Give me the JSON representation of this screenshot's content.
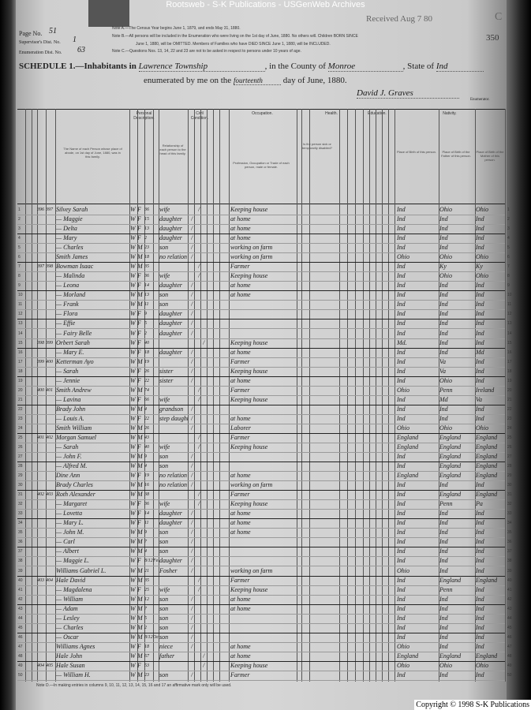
{
  "banner": "Rootsweb - S-K Publications - USGenWeb Archives",
  "header": {
    "page_no_label": "Page No.",
    "page_no": "51",
    "supervisor_label": "Supervisor's Dist. No.",
    "supervisor_no": "1",
    "enumeration_label": "Enumeration Dist. No.",
    "enumeration_no": "63",
    "note_a": "Note A.—The Census Year begins June 1, 1879, and ends May 31, 1880.",
    "note_b1": "Note B.—All persons will be included in the Enumeration who were living on the 1st day of June, 1880. No others will. Children BORN SINCE",
    "note_b2": "June 1, 1880, will be OMITTED. Members of Families who have DIED SINCE June 1, 1880, will be INCLUDED.",
    "note_c": "Note C.—Questions Nos. 13, 14, 22 and 23 are not to be asked in respect to persons under 10 years of age.",
    "received_stamp": "Received Aug 7 80",
    "corner_letter": "C",
    "sheet_number": "350",
    "schedule_label": "SCHEDULE 1.—Inhabitants in",
    "township": "Lawrence Township",
    "county_label": ", in the County of",
    "county": "Monroe",
    "state_label": ", State of",
    "state": "Ind",
    "enumerated_label": "enumerated by me on the",
    "enumerated_day": "fourteenth",
    "day_label": "day of June, 1880.",
    "enumerator_signature": "David J. Graves",
    "enumerator_label": "Enumerator."
  },
  "column_groups": {
    "personal": "Personal Description.",
    "civil": "Civil Condition.",
    "occupation": "Occupation.",
    "health": "Health.",
    "education": "Education.",
    "nativity": "Nativity."
  },
  "column_headers": {
    "name": "The Name of each Person whose place of abode, on 1st day of June, 1880, was in this family.",
    "relation": "Relationship of each person to the head of this family.",
    "occupation": "Profession, Occupation or Trade of each person, male or female.",
    "sickness": "Is the person sick or temporarily disabled?",
    "birthplace": "Place of Birth of this person.",
    "father": "Place of Birth of the Father of this person.",
    "mother": "Place of Birth of the Mother of this person."
  },
  "rows": [
    {
      "dwelling": "396",
      "family": "397",
      "name": "Silvey Sarah",
      "color": "W",
      "sex": "F",
      "age": "36",
      "relation": "wife",
      "civil": "married",
      "occupation": "Keeping house",
      "birthplace": "Ind",
      "father": "Ohio",
      "mother": "Ohio"
    },
    {
      "name": "— Maggie",
      "color": "W",
      "sex": "F",
      "age": "15",
      "relation": "daughter",
      "civil": "single",
      "occupation": "at home",
      "birthplace": "Ind",
      "father": "Ind",
      "mother": "Ind"
    },
    {
      "name": "— Delta",
      "color": "W",
      "sex": "F",
      "age": "13",
      "relation": "daughter",
      "civil": "single",
      "occupation": "at home",
      "birthplace": "Ind",
      "father": "Ind",
      "mother": "Ind",
      "end": true
    },
    {
      "name": "— Mary",
      "color": "W",
      "sex": "F",
      "age": "2",
      "relation": "daughter",
      "civil": "single",
      "occupation": "at home",
      "birthplace": "Ind",
      "father": "Ind",
      "mother": "Ind"
    },
    {
      "name": "— Charles",
      "color": "W",
      "sex": "M",
      "age": "23",
      "relation": "son",
      "civil": "single",
      "occupation": "working on farm",
      "birthplace": "Ind",
      "father": "Ind",
      "mother": "Ind"
    },
    {
      "name": "Smith James",
      "color": "W",
      "sex": "M",
      "age": "18",
      "relation": "no relation",
      "civil": "single",
      "occupation": "working on farm",
      "birthplace": "Ohio",
      "father": "Ohio",
      "mother": "Ohio",
      "end": true
    },
    {
      "dwelling": "397",
      "family": "398",
      "name": "Bowman Isaac",
      "color": "W",
      "sex": "M",
      "age": "35",
      "relation": "",
      "civil": "married",
      "occupation": "Farmer",
      "birthplace": "Ind",
      "father": "Ky",
      "mother": "Ky"
    },
    {
      "name": "— Malinda",
      "color": "W",
      "sex": "F",
      "age": "36",
      "relation": "wife",
      "civil": "married",
      "occupation": "Keeping house",
      "birthplace": "Ind",
      "father": "Ohio",
      "mother": "Ohio"
    },
    {
      "name": "— Leona",
      "color": "W",
      "sex": "F",
      "age": "14",
      "relation": "daughter",
      "civil": "single",
      "occupation": "at home",
      "birthplace": "Ind",
      "father": "Ind",
      "mother": "Ind",
      "end": true
    },
    {
      "name": "— Morland",
      "color": "W",
      "sex": "M",
      "age": "13",
      "relation": "son",
      "civil": "single",
      "occupation": "at home",
      "birthplace": "Ind",
      "father": "Ind",
      "mother": "Ind"
    },
    {
      "name": "— Frank",
      "color": "W",
      "sex": "M",
      "age": "11",
      "relation": "son",
      "civil": "single",
      "occupation": "",
      "birthplace": "Ind",
      "father": "Ind",
      "mother": "Ind"
    },
    {
      "name": "— Flora",
      "color": "W",
      "sex": "F",
      "age": "9",
      "relation": "daughter",
      "civil": "single",
      "occupation": "",
      "birthplace": "Ind",
      "father": "Ind",
      "mother": "Ind",
      "end": true
    },
    {
      "name": "— Effie",
      "color": "W",
      "sex": "F",
      "age": "5",
      "relation": "daughter",
      "civil": "single",
      "occupation": "",
      "birthplace": "Ind",
      "father": "Ind",
      "mother": "Ind"
    },
    {
      "name": "— Fairy Belle",
      "color": "W",
      "sex": "F",
      "age": "2",
      "relation": "daughter",
      "civil": "single",
      "occupation": "",
      "birthplace": "Ind",
      "father": "Ind",
      "mother": "Ind"
    },
    {
      "dwelling": "398",
      "family": "399",
      "name": "Orbert Sarah",
      "color": "W",
      "sex": "F",
      "age": "40",
      "relation": "",
      "civil": "widowed",
      "occupation": "Keeping house",
      "birthplace": "Md.",
      "father": "Ind",
      "mother": "Ind",
      "end": true
    },
    {
      "name": "— Mary E.",
      "color": "W",
      "sex": "F",
      "age": "18",
      "relation": "daughter",
      "civil": "single",
      "occupation": "at home",
      "birthplace": "Ind",
      "father": "Ind",
      "mother": "Md"
    },
    {
      "dwelling": "399",
      "family": "400",
      "name": "Ketterman Ayo",
      "color": "W",
      "sex": "M",
      "age": "19",
      "relation": "",
      "civil": "single",
      "occupation": "Farmer",
      "birthplace": "Ind",
      "father": "Va",
      "mother": "Ind"
    },
    {
      "name": "— Sarah",
      "color": "W",
      "sex": "F",
      "age": "26",
      "relation": "sister",
      "civil": "single",
      "occupation": "Keeping house",
      "birthplace": "Ind",
      "father": "Va",
      "mother": "Ind",
      "end": true
    },
    {
      "name": "— Jennie",
      "color": "W",
      "sex": "F",
      "age": "22",
      "relation": "sister",
      "civil": "single",
      "occupation": "at home",
      "birthplace": "Ind",
      "father": "Ohio",
      "mother": "Ind"
    },
    {
      "dwelling": "400",
      "family": "401",
      "name": "Smith Andrew",
      "color": "W",
      "sex": "M",
      "age": "74",
      "relation": "",
      "civil": "married",
      "occupation": "Farmer",
      "birthplace": "Ohio",
      "father": "Penn",
      "mother": "Ireland"
    },
    {
      "name": "— Lavina",
      "color": "W",
      "sex": "F",
      "age": "66",
      "relation": "wife",
      "civil": "married",
      "occupation": "Keeping house",
      "birthplace": "Ind",
      "father": "Md",
      "mother": "Va",
      "end": true
    },
    {
      "name": "Brady John",
      "color": "W",
      "sex": "M",
      "age": "4",
      "relation": "grandson",
      "civil": "single",
      "occupation": "",
      "birthplace": "Ind",
      "father": "Ind",
      "mother": "Ind"
    },
    {
      "name": "— Louis A.",
      "color": "W",
      "sex": "F",
      "age": "22",
      "relation": "step daughter",
      "civil": "single",
      "occupation": "at home",
      "birthplace": "Ind",
      "father": "Ind",
      "mother": "Ind"
    },
    {
      "name": "Smith William",
      "color": "W",
      "sex": "M",
      "age": "26",
      "relation": "",
      "civil": "single",
      "occupation": "Laborer",
      "birthplace": "Ohio",
      "father": "Ohio",
      "mother": "Ohio",
      "end": true
    },
    {
      "dwelling": "401",
      "family": "402",
      "name": "Morgan Samuel",
      "color": "W",
      "sex": "M",
      "age": "43",
      "relation": "",
      "civil": "married",
      "occupation": "Farmer",
      "birthplace": "England",
      "father": "England",
      "mother": "England"
    },
    {
      "name": "— Sarah",
      "color": "W",
      "sex": "F",
      "age": "40",
      "relation": "wife",
      "civil": "married",
      "occupation": "Keeping house",
      "birthplace": "England",
      "father": "England",
      "mother": "England"
    },
    {
      "name": "— John F.",
      "color": "W",
      "sex": "M",
      "age": "9",
      "relation": "son",
      "civil": "single",
      "occupation": "",
      "birthplace": "Ind",
      "father": "England",
      "mother": "England",
      "end": true
    },
    {
      "name": "— Alfred M.",
      "color": "W",
      "sex": "M",
      "age": "4",
      "relation": "son",
      "civil": "single",
      "occupation": "",
      "birthplace": "Ind",
      "father": "England",
      "mother": "England"
    },
    {
      "name": "Dine Ann",
      "color": "W",
      "sex": "F",
      "age": "19",
      "relation": "no relation",
      "civil": "single",
      "occupation": "at home",
      "birthplace": "England",
      "father": "England",
      "mother": "England"
    },
    {
      "name": "Brady Charles",
      "color": "W",
      "sex": "M",
      "age": "16",
      "relation": "no relation",
      "civil": "single",
      "occupation": "working on farm",
      "birthplace": "Ind",
      "father": "Ind",
      "mother": "Ind",
      "end": true
    },
    {
      "dwelling": "402",
      "family": "403",
      "name": "Roth Alexander",
      "color": "W",
      "sex": "M",
      "age": "38",
      "relation": "",
      "civil": "married",
      "occupation": "Farmer",
      "birthplace": "Ind",
      "father": "England",
      "mother": "England"
    },
    {
      "name": "— Margaret",
      "color": "W",
      "sex": "F",
      "age": "36",
      "relation": "wife",
      "civil": "married",
      "occupation": "Keeping house",
      "birthplace": "Ind",
      "father": "Penn",
      "mother": "Pa"
    },
    {
      "name": "— Lovetta",
      "color": "W",
      "sex": "F",
      "age": "14",
      "relation": "daughter",
      "civil": "single",
      "occupation": "at home",
      "birthplace": "Ind",
      "father": "Ind",
      "mother": "Ind",
      "end": true
    },
    {
      "name": "— Mary L.",
      "color": "W",
      "sex": "F",
      "age": "11",
      "relation": "daughter",
      "civil": "single",
      "occupation": "at home",
      "birthplace": "Ind",
      "father": "Ind",
      "mother": "Ind"
    },
    {
      "name": "— John M.",
      "color": "W",
      "sex": "M",
      "age": "9",
      "relation": "son",
      "civil": "single",
      "occupation": "at home",
      "birthplace": "Ind",
      "father": "Ind",
      "mother": "Ind"
    },
    {
      "name": "— Carl",
      "color": "W",
      "sex": "M",
      "age": "7",
      "relation": "son",
      "civil": "single",
      "occupation": "",
      "birthplace": "Ind",
      "father": "Ind",
      "mother": "Ind",
      "end": true
    },
    {
      "name": "— Albert",
      "color": "W",
      "sex": "M",
      "age": "4",
      "relation": "son",
      "civil": "single",
      "occupation": "",
      "birthplace": "Ind",
      "father": "Ind",
      "mother": "Ind"
    },
    {
      "name": "— Maggie L.",
      "color": "W",
      "sex": "F",
      "age": "8/12",
      "month": "Feb",
      "relation": "daughter",
      "civil": "single",
      "occupation": "",
      "birthplace": "Ind",
      "father": "Ind",
      "mother": "Ind"
    },
    {
      "name": "Williams Gabriel L.",
      "color": "W",
      "sex": "M",
      "age": "21",
      "relation": "Fosher",
      "civil": "single",
      "occupation": "working on farm",
      "birthplace": "Ohio",
      "father": "Ind",
      "mother": "Ind",
      "end": true
    },
    {
      "dwelling": "403",
      "family": "404",
      "name": "Hale David",
      "color": "W",
      "sex": "M",
      "age": "35",
      "relation": "",
      "civil": "married",
      "occupation": "Farmer",
      "birthplace": "Ind",
      "father": "England",
      "mother": "England"
    },
    {
      "name": "— Magdalena",
      "color": "W",
      "sex": "F",
      "age": "25",
      "relation": "wife",
      "civil": "married",
      "occupation": "Keeping house",
      "birthplace": "Ind",
      "father": "Penn",
      "mother": "Ind"
    },
    {
      "name": "— William",
      "color": "W",
      "sex": "M",
      "age": "12",
      "relation": "son",
      "civil": "single",
      "occupation": "at home",
      "birthplace": "Ind",
      "father": "Ind",
      "mother": "Ind",
      "end": true
    },
    {
      "name": "— Adam",
      "color": "W",
      "sex": "M",
      "age": "7",
      "relation": "son",
      "civil": "single",
      "occupation": "at home",
      "birthplace": "Ind",
      "father": "Ind",
      "mother": "Ind"
    },
    {
      "name": "— Lesley",
      "color": "W",
      "sex": "M",
      "age": "5",
      "relation": "son",
      "civil": "single",
      "occupation": "",
      "birthplace": "Ind",
      "father": "Ind",
      "mother": "Ind"
    },
    {
      "name": "— Charles",
      "color": "W",
      "sex": "M",
      "age": "2",
      "relation": "son",
      "civil": "single",
      "occupation": "",
      "birthplace": "Ind",
      "father": "Ind",
      "mother": "Ind",
      "end": true
    },
    {
      "name": "— Oscar",
      "color": "W",
      "sex": "M",
      "age": "8/12",
      "month": "Oct",
      "relation": "son",
      "civil": "single",
      "occupation": "",
      "birthplace": "Ind",
      "father": "Ind",
      "mother": "Ind"
    },
    {
      "name": "Williams Agnes",
      "color": "W",
      "sex": "F",
      "age": "18",
      "relation": "niece",
      "civil": "single",
      "occupation": "at home",
      "birthplace": "Ohio",
      "father": "Ind",
      "mother": "Ind"
    },
    {
      "name": "Hale John",
      "color": "W",
      "sex": "M",
      "age": "67",
      "relation": "father",
      "civil": "widowed",
      "occupation": "at home",
      "birthplace": "England",
      "father": "England",
      "mother": "England",
      "end": true
    },
    {
      "dwelling": "404",
      "family": "405",
      "name": "Hale Susan",
      "color": "W",
      "sex": "F",
      "age": "53",
      "relation": "",
      "civil": "widowed",
      "occupation": "Keeping house",
      "birthplace": "Ohio",
      "father": "Ohio",
      "mother": "Ohio"
    },
    {
      "name": "— William H.",
      "color": "W",
      "sex": "M",
      "age": "23",
      "relation": "son",
      "civil": "single",
      "occupation": "Farmer",
      "birthplace": "Ind",
      "father": "Ind",
      "mother": "Ind"
    }
  ],
  "footer_note": "Note D.—In making entries in columns 9, 10, 11, 12, 13, 14, 15, 16 and 17 an affirmative mark only will be used.",
  "copyright": "Copyright © 1998 S-K Publications"
}
